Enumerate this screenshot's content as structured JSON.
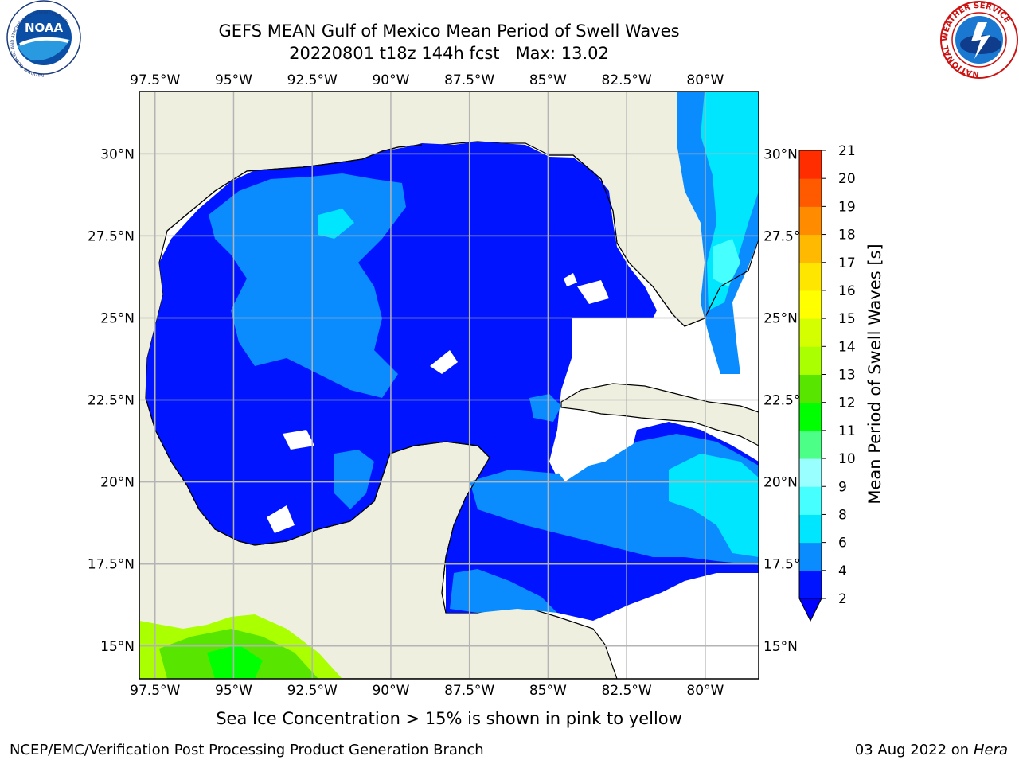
{
  "title_line1": "GEFS MEAN Gulf of Mexico Mean Period of Swell Waves",
  "title_line2": "20220801 t18z 144h fcst   Max: 13.02",
  "lon_labels": [
    "97.5°W",
    "95°W",
    "92.5°W",
    "90°W",
    "87.5°W",
    "85°W",
    "82.5°W",
    "80°W"
  ],
  "lat_labels": [
    "30°N",
    "27.5°N",
    "25°N",
    "22.5°N",
    "20°N",
    "17.5°N",
    "15°N"
  ],
  "lon_values": [
    -97.5,
    -95,
    -92.5,
    -90,
    -87.5,
    -85,
    -82.5,
    -80
  ],
  "lat_values": [
    30,
    27.5,
    25,
    22.5,
    20,
    17.5,
    15
  ],
  "extent": {
    "lon": [
      -98.0,
      -78.3
    ],
    "lat": [
      14.0,
      31.9
    ]
  },
  "colorbar": {
    "label": "Mean Period of Swell Waves [s]",
    "ticks": [
      "2",
      "4",
      "6",
      "8",
      "9",
      "10",
      "11",
      "12",
      "13",
      "14",
      "15",
      "16",
      "17",
      "18",
      "19",
      "20",
      "21"
    ],
    "colors": [
      "#0014ff",
      "#0a8cff",
      "#00e6ff",
      "#46ffff",
      "#9affff",
      "#4cff86",
      "#00ff00",
      "#58e600",
      "#aaff00",
      "#d4ff00",
      "#ffff00",
      "#ffe600",
      "#ffb900",
      "#ff8c00",
      "#ff5a00",
      "#ff2d00",
      "#ff0000"
    ],
    "under_color": "#0000ff"
  },
  "colors": {
    "land": "#efefdf",
    "grid": "#b4b4b4"
  },
  "footer_note": "Sea Ice Concentration > 15% is shown in pink to yellow",
  "credit": "NCEP/EMC/Verification Post Processing Product Generation Branch",
  "date": "03 Aug 2022 on",
  "date_host": "Hera",
  "logos": {
    "left": "noaa-logo",
    "right": "nws-logo",
    "left_text": "NOAA",
    "left_ring": "NATIONAL OCEANIC AND ATMOSPHERIC ADMINISTRATION",
    "left_ring2": "U.S. DEPARTMENT OF COMMERCE",
    "right_ring": "NATIONAL WEATHER SERVICE"
  }
}
